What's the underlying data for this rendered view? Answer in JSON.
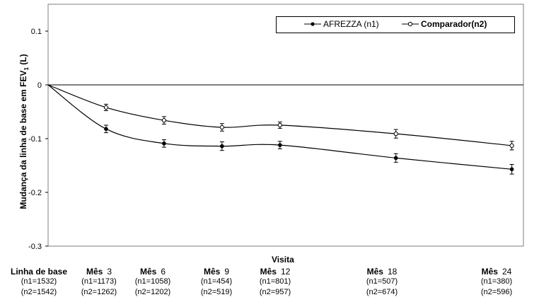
{
  "chart_data": {
    "type": "line",
    "xlabel": "Visita",
    "ylabel": "Mudança da linha de base em FEV",
    "ylabel_sub": "1",
    "ylabel_unit": " (L)",
    "ylim": [
      -0.3,
      0.15
    ],
    "yticks": [
      "0.1",
      "0",
      "-0.1",
      "-0.2",
      "-0.3"
    ],
    "grid": false,
    "legend_position": "top-right",
    "categories": [
      {
        "label": "Linha de base",
        "num": "",
        "n1": "(n1=1532)",
        "n2": "(n2=1542)",
        "month": 0
      },
      {
        "label": "Mês",
        "num": "3",
        "n1": "(n1=1173)",
        "n2": "(n2=1262)",
        "month": 3
      },
      {
        "label": "Mês",
        "num": "6",
        "n1": "(n1=1058)",
        "n2": "(n2=1202)",
        "month": 6
      },
      {
        "label": "Mês",
        "num": "9",
        "n1": "(n1=454)",
        "n2": "(n2=519)",
        "month": 9
      },
      {
        "label": "Mês",
        "num": "12",
        "n1": "(n1=801)",
        "n2": "(n2=957)",
        "month": 12
      },
      {
        "label": "Mês",
        "num": "18",
        "n1": "(n1=507)",
        "n2": "(n2=674)",
        "month": 18
      },
      {
        "label": "Mês",
        "num": "24",
        "n1": "(n1=380)",
        "n2": "(n2=596)",
        "month": 24
      }
    ],
    "series": [
      {
        "name": "AFREZZA (n1)",
        "marker": "filled-diamond",
        "color": "#000000",
        "values": [
          0,
          -0.082,
          -0.109,
          -0.114,
          -0.112,
          -0.136,
          -0.157
        ],
        "errors": [
          0,
          0.007,
          0.007,
          0.008,
          0.007,
          0.008,
          0.009
        ]
      },
      {
        "name": "Comparador(n2)",
        "marker": "open-circle",
        "color": "#000000",
        "values": [
          0,
          -0.042,
          -0.066,
          -0.079,
          -0.075,
          -0.091,
          -0.113
        ],
        "errors": [
          0,
          0.006,
          0.007,
          0.007,
          0.006,
          0.008,
          0.008
        ]
      }
    ]
  }
}
